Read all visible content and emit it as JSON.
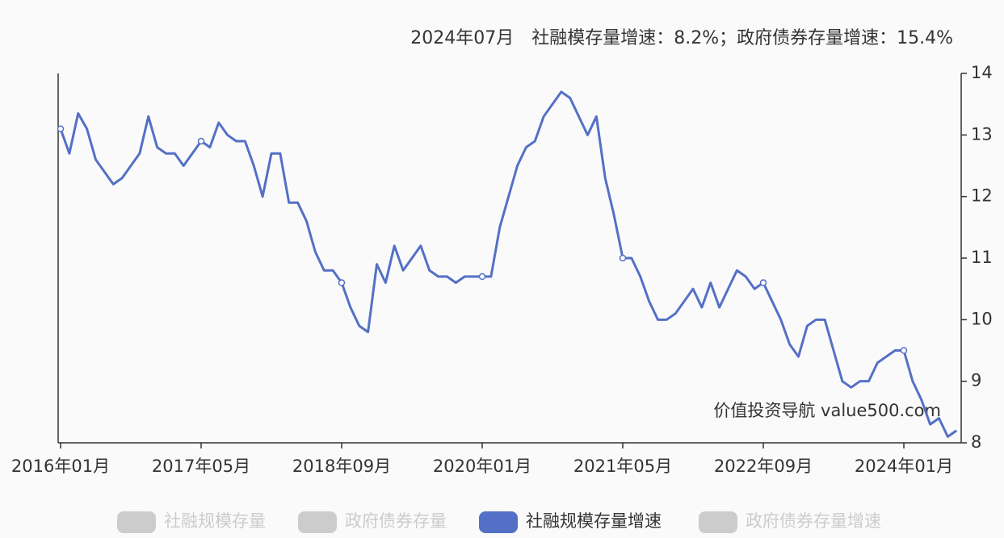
{
  "chart_data": {
    "type": "line",
    "title": "2024年07月　社融模存量增速：8.2%；政府债券存量增速：15.4%",
    "watermark": "价值投资导航 value500.com",
    "categories": [
      "2016年01月",
      null,
      null,
      null,
      null,
      null,
      null,
      null,
      null,
      null,
      null,
      null,
      null,
      null,
      null,
      null,
      "2017年05月",
      null,
      null,
      null,
      null,
      null,
      null,
      null,
      null,
      null,
      null,
      null,
      null,
      null,
      null,
      null,
      "2018年09月",
      null,
      null,
      null,
      null,
      null,
      null,
      null,
      null,
      null,
      null,
      null,
      null,
      null,
      null,
      null,
      "2020年01月",
      null,
      null,
      null,
      null,
      null,
      null,
      null,
      null,
      null,
      null,
      null,
      null,
      null,
      null,
      null,
      "2021年05月",
      null,
      null,
      null,
      null,
      null,
      null,
      null,
      null,
      null,
      null,
      null,
      null,
      null,
      null,
      null,
      "2022年09月",
      null,
      null,
      null,
      null,
      null,
      null,
      null,
      null,
      null,
      null,
      null,
      null,
      null,
      null,
      null,
      "2024年01月",
      null,
      null,
      null,
      null,
      null,
      null
    ],
    "values": [
      13.1,
      12.7,
      13.35,
      13.1,
      12.6,
      12.4,
      12.2,
      12.3,
      12.5,
      12.7,
      13.3,
      12.8,
      12.7,
      12.7,
      12.5,
      12.7,
      12.9,
      12.8,
      13.2,
      13.0,
      12.9,
      12.9,
      12.5,
      12.0,
      12.7,
      12.7,
      11.9,
      11.9,
      11.6,
      11.1,
      10.8,
      10.8,
      10.6,
      10.2,
      9.9,
      9.8,
      10.9,
      10.6,
      11.2,
      10.8,
      11.0,
      11.2,
      10.8,
      10.7,
      10.7,
      10.6,
      10.7,
      10.7,
      10.7,
      10.7,
      11.5,
      12.0,
      12.5,
      12.8,
      12.9,
      13.3,
      13.5,
      13.7,
      13.6,
      13.3,
      13.0,
      13.3,
      12.3,
      11.7,
      11.0,
      11.0,
      10.7,
      10.3,
      10.0,
      10.0,
      10.1,
      10.3,
      10.5,
      10.2,
      10.6,
      10.2,
      10.5,
      10.8,
      10.7,
      10.5,
      10.6,
      10.3,
      10.0,
      9.6,
      9.4,
      9.9,
      10.0,
      10.0,
      9.5,
      9.0,
      8.9,
      9.0,
      9.0,
      9.3,
      9.4,
      9.5,
      9.5,
      9.0,
      8.7,
      8.3,
      8.4,
      8.1,
      8.2
    ],
    "color": "#5470c6",
    "ylim": [
      8,
      14
    ],
    "yticks": [
      8,
      9,
      10,
      11,
      12,
      13,
      14
    ],
    "legend_items": [
      {
        "name": "社融规模存量",
        "color": "#cccccc"
      },
      {
        "name": "政府债券存量",
        "color": "#cccccc"
      },
      {
        "name": "社融规模存量增速",
        "color": "#5470c6"
      },
      {
        "name": "政府债券存量增速",
        "color": "#cccccc"
      }
    ]
  }
}
